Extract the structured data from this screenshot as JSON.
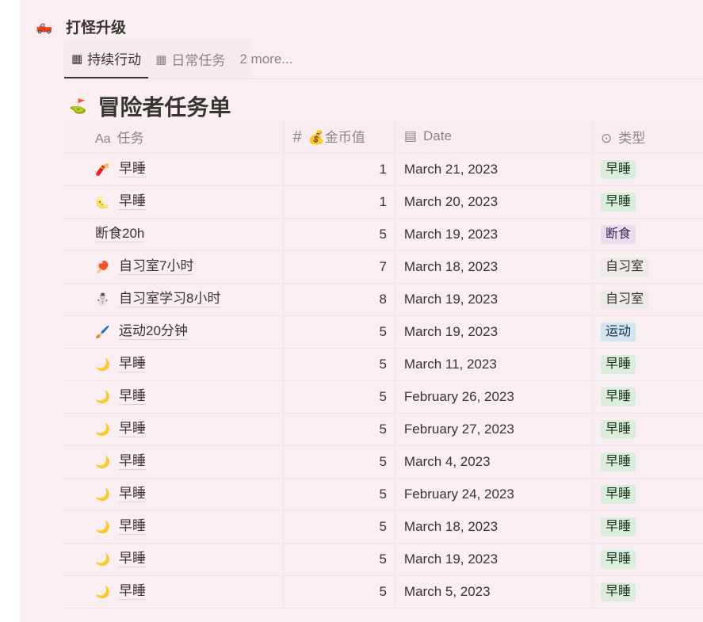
{
  "heading": {
    "icon": "🛻",
    "title": "打怪升级"
  },
  "tabs": [
    {
      "icon": "table-icon",
      "label": "持续行动",
      "active": true
    },
    {
      "icon": "table-icon",
      "label": "日常任务",
      "active": false
    },
    {
      "label": "2 more..."
    }
  ],
  "db_title": {
    "icon": "⛳",
    "title": "冒险者任务单"
  },
  "columns": [
    {
      "icon": "Aa",
      "label": "任务"
    },
    {
      "icon": "#",
      "label": "💰金币值"
    },
    {
      "icon": "calendar-icon",
      "label": "Date"
    },
    {
      "icon": "select-icon",
      "label": "类型"
    }
  ],
  "tag_colors": {
    "早睡": {
      "bg": "#dbeddb",
      "fg": "#1c3829"
    },
    "断食": {
      "bg": "#e8deee",
      "fg": "#412454"
    },
    "自习室": {
      "bg": "#eeeae8",
      "fg": "#37352f"
    },
    "运动": {
      "bg": "#d3e5ef",
      "fg": "#183347"
    }
  },
  "rows": [
    {
      "icon": "🧨",
      "task": "早睡",
      "coins": "1",
      "date": "March 21, 2023",
      "type": "早睡"
    },
    {
      "icon": "🌜",
      "task": "早睡",
      "coins": "1",
      "date": "March 20, 2023",
      "type": "早睡"
    },
    {
      "icon": "",
      "task": "断食20h",
      "coins": "5",
      "date": "March 19, 2023",
      "type": "断食"
    },
    {
      "icon": "🏓",
      "task": "自习室7小时",
      "coins": "7",
      "date": "March 18, 2023",
      "type": "自习室"
    },
    {
      "icon": "⛄",
      "task": "自习室学习8小时",
      "coins": "8",
      "date": "March 19, 2023",
      "type": "自习室"
    },
    {
      "icon": "🖌️",
      "task": "运动20分钟",
      "coins": "5",
      "date": "March 19, 2023",
      "type": "运动"
    },
    {
      "icon": "🌙",
      "task": "早睡",
      "coins": "5",
      "date": "March 11, 2023",
      "type": "早睡"
    },
    {
      "icon": "🌙",
      "task": "早睡",
      "coins": "5",
      "date": "February 26, 2023",
      "type": "早睡"
    },
    {
      "icon": "🌙",
      "task": "早睡",
      "coins": "5",
      "date": "February 27, 2023",
      "type": "早睡"
    },
    {
      "icon": "🌙",
      "task": "早睡",
      "coins": "5",
      "date": "March 4, 2023",
      "type": "早睡"
    },
    {
      "icon": "🌙",
      "task": "早睡",
      "coins": "5",
      "date": "February 24, 2023",
      "type": "早睡"
    },
    {
      "icon": "🌙",
      "task": "早睡",
      "coins": "5",
      "date": "March 18, 2023",
      "type": "早睡"
    },
    {
      "icon": "🌙",
      "task": "早睡",
      "coins": "5",
      "date": "March 19, 2023",
      "type": "早睡"
    },
    {
      "icon": "🌙",
      "task": "早睡",
      "coins": "5",
      "date": "March 5, 2023",
      "type": "早睡"
    }
  ]
}
